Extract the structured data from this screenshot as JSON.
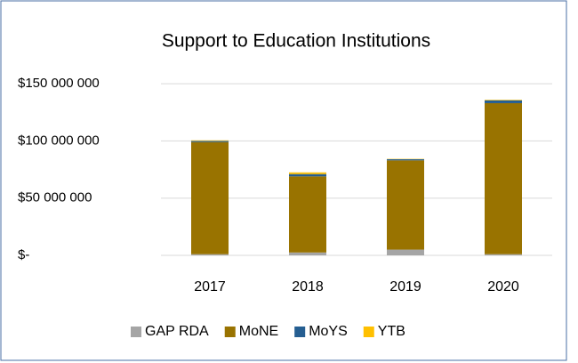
{
  "chart_data": {
    "type": "bar",
    "stacked": true,
    "title": "Support to Education Institutions",
    "categories": [
      "2017",
      "2018",
      "2019",
      "2020"
    ],
    "series": [
      {
        "name": "GAP RDA",
        "color": "#a5a5a5",
        "values": [
          1000000,
          2500000,
          5000000,
          1000000
        ]
      },
      {
        "name": "MoNE",
        "color": "#997300",
        "values": [
          98000000,
          66500000,
          78000000,
          132000000
        ]
      },
      {
        "name": "MoYS",
        "color": "#255e91",
        "values": [
          1000000,
          2000000,
          1000000,
          2500000
        ]
      },
      {
        "name": "YTB",
        "color": "#ffc000",
        "values": [
          500000,
          1500000,
          300000,
          500000
        ]
      }
    ],
    "ylim": [
      0,
      162000000
    ],
    "yticks": [
      {
        "value": 0,
        "label": "$-"
      },
      {
        "value": 50000000,
        "label": "$50 000 000"
      },
      {
        "value": 100000000,
        "label": "$100 000 000"
      },
      {
        "value": 150000000,
        "label": "$150 000 000"
      }
    ],
    "grid": true,
    "legend": "bottom"
  }
}
